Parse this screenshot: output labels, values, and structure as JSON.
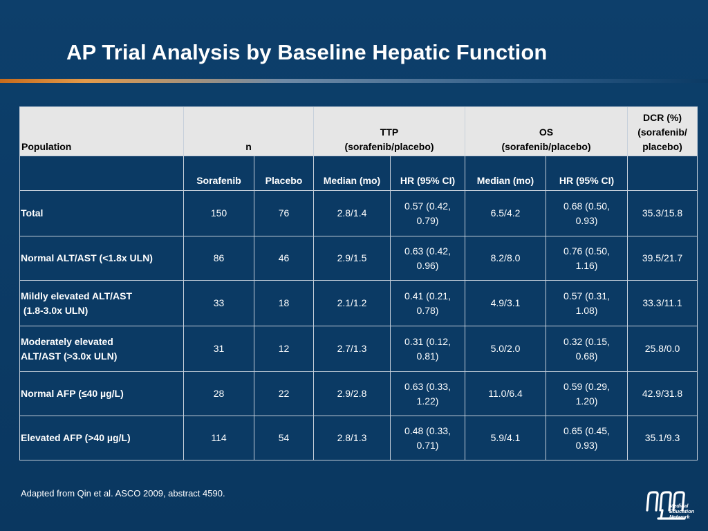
{
  "slide": {
    "title": "AP Trial Analysis by Baseline Hepatic Function",
    "footnote": "Adapted from Qin et al. ASCO 2009, abstract 4590."
  },
  "table": {
    "header": {
      "population": "Population",
      "n": "n",
      "ttp_line1": "TTP",
      "ttp_line2": "(sorafenib/placebo)",
      "os_line1": "OS",
      "os_line2": "(sorafenib/placebo)",
      "dcr_line1": "DCR (%)",
      "dcr_line2": "(sorafenib/",
      "dcr_line3": "placebo)"
    },
    "subheader": {
      "sorafenib": "Sorafenib",
      "placebo": "Placebo",
      "ttp_median": "Median (mo)",
      "ttp_hr": "HR (95% CI)",
      "os_median": "Median (mo)",
      "os_hr": "HR (95% CI)"
    },
    "rows": [
      {
        "label1": "Total",
        "label2": "",
        "sorafenib": "150",
        "placebo": "76",
        "ttp_median": "2.8/1.4",
        "ttp_hr1": "0.57 (0.42,",
        "ttp_hr2": "0.79)",
        "os_median": "6.5/4.2",
        "os_hr1": "0.68 (0.50,",
        "os_hr2": "0.93)",
        "dcr": "35.3/15.8"
      },
      {
        "label1": "Normal ALT/AST (<1.8x ULN)",
        "label2": "",
        "sorafenib": "86",
        "placebo": "46",
        "ttp_median": "2.9/1.5",
        "ttp_hr1": "0.63 (0.42,",
        "ttp_hr2": "0.96)",
        "os_median": "8.2/8.0",
        "os_hr1": "0.76 (0.50,",
        "os_hr2": "1.16)",
        "dcr": "39.5/21.7"
      },
      {
        "label1": "Mildly elevated ALT/AST",
        "label2": " (1.8-3.0x ULN)",
        "sorafenib": "33",
        "placebo": "18",
        "ttp_median": "2.1/1.2",
        "ttp_hr1": "0.41 (0.21,",
        "ttp_hr2": "0.78)",
        "os_median": "4.9/3.1",
        "os_hr1": "0.57 (0.31,",
        "os_hr2": "1.08)",
        "dcr": "33.3/11.1"
      },
      {
        "label1": "Moderately elevated",
        "label2": "ALT/AST (>3.0x ULN)",
        "sorafenib": "31",
        "placebo": "12",
        "ttp_median": "2.7/1.3",
        "ttp_hr1": "0.31 (0.12,",
        "ttp_hr2": "0.81)",
        "os_median": "5.0/2.0",
        "os_hr1": "0.32 (0.15,",
        "os_hr2": "0.68)",
        "dcr": "25.8/0.0"
      },
      {
        "label1": "Normal AFP (≤40 µg/L)",
        "label2": "",
        "sorafenib": "28",
        "placebo": "22",
        "ttp_median": "2.9/2.8",
        "ttp_hr1": "0.63 (0.33,",
        "ttp_hr2": "1.22)",
        "os_median": "11.0/6.4",
        "os_hr1": "0.59 (0.29,",
        "os_hr2": "1.20)",
        "dcr": "42.9/31.8"
      },
      {
        "label1": "Elevated AFP (>40 µg/L)",
        "label2": "",
        "sorafenib": "114",
        "placebo": "54",
        "ttp_median": "2.8/1.3",
        "ttp_hr1": "0.48 (0.33,",
        "ttp_hr2": "0.71)",
        "os_median": "5.9/4.1",
        "os_hr1": "0.65 (0.45,",
        "os_hr2": "0.93)",
        "dcr": "35.1/9.3"
      }
    ]
  },
  "logo": {
    "line1": "Medical",
    "line2": "Education",
    "line3": "Network"
  }
}
